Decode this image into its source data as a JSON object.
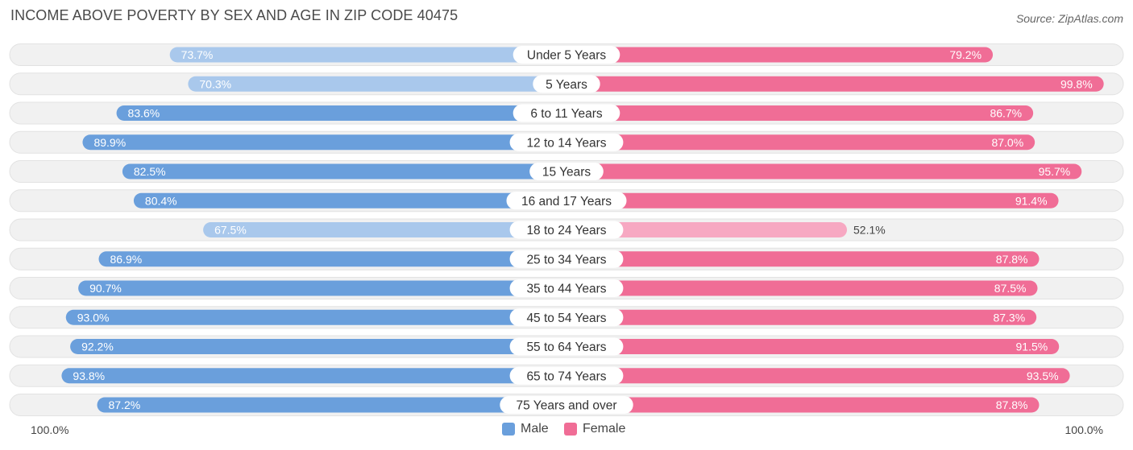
{
  "title": "INCOME ABOVE POVERTY BY SEX AND AGE IN ZIP CODE 40475",
  "source": "Source: ZipAtlas.com",
  "colors": {
    "male_strong": "#6a9fdc",
    "male_light": "#a9c8ec",
    "female_strong": "#f06d96",
    "female_light": "#f7a8c2",
    "row_bg": "#f1f1f1"
  },
  "legend": {
    "male": "Male",
    "female": "Female"
  },
  "axis": {
    "left_label": "100.0%",
    "right_label": "100.0%"
  },
  "chart_data": {
    "type": "bar",
    "orientation": "horizontal-diverging",
    "categories": [
      "Under 5 Years",
      "5 Years",
      "6 to 11 Years",
      "12 to 14 Years",
      "15 Years",
      "16 and 17 Years",
      "18 to 24 Years",
      "25 to 34 Years",
      "35 to 44 Years",
      "45 to 54 Years",
      "55 to 64 Years",
      "65 to 74 Years",
      "75 Years and over"
    ],
    "series": [
      {
        "name": "Male",
        "values": [
          73.7,
          70.3,
          83.6,
          89.9,
          82.5,
          80.4,
          67.5,
          86.9,
          90.7,
          93.0,
          92.2,
          93.8,
          87.2
        ],
        "labels": [
          "73.7%",
          "70.3%",
          "83.6%",
          "89.9%",
          "82.5%",
          "80.4%",
          "67.5%",
          "86.9%",
          "90.7%",
          "93.0%",
          "92.2%",
          "93.8%",
          "87.2%"
        ]
      },
      {
        "name": "Female",
        "values": [
          79.2,
          99.8,
          86.7,
          87.0,
          95.7,
          91.4,
          52.1,
          87.8,
          87.5,
          87.3,
          91.5,
          93.5,
          87.8
        ],
        "labels": [
          "79.2%",
          "99.8%",
          "86.7%",
          "87.0%",
          "95.7%",
          "91.4%",
          "52.1%",
          "87.8%",
          "87.5%",
          "87.3%",
          "91.5%",
          "93.5%",
          "87.8%"
        ]
      }
    ],
    "xlim": [
      0,
      100
    ],
    "legend_position": "bottom-center"
  }
}
